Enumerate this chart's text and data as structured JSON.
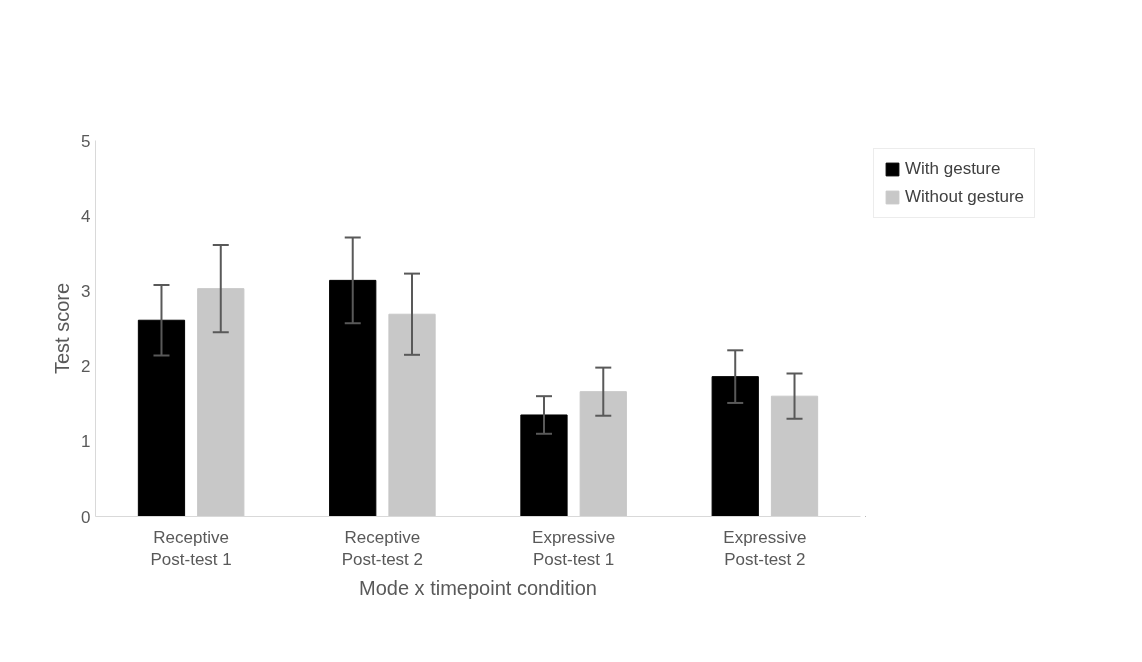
{
  "chart_data": {
    "type": "bar",
    "xlabel": "Mode x timepoint condition",
    "ylabel": "Test score",
    "categories": [
      "Receptive\nPost-test 1",
      "Receptive\nPost-test 2",
      "Expressive\nPost-test 1",
      "Expressive\nPost-test 2"
    ],
    "series": [
      {
        "name": "With gesture",
        "color": "#000000",
        "values": [
          2.61,
          3.14,
          1.35,
          1.86
        ],
        "errors": [
          0.47,
          0.57,
          0.25,
          0.35
        ]
      },
      {
        "name": "Without gesture",
        "color": "#c8c8c8",
        "values": [
          3.03,
          2.69,
          1.66,
          1.6
        ],
        "errors": [
          0.58,
          0.54,
          0.32,
          0.3
        ]
      }
    ],
    "ylim": [
      0,
      5
    ],
    "yticks": [
      0,
      1,
      2,
      3,
      4,
      5
    ],
    "grid": false,
    "legend": "top right"
  }
}
